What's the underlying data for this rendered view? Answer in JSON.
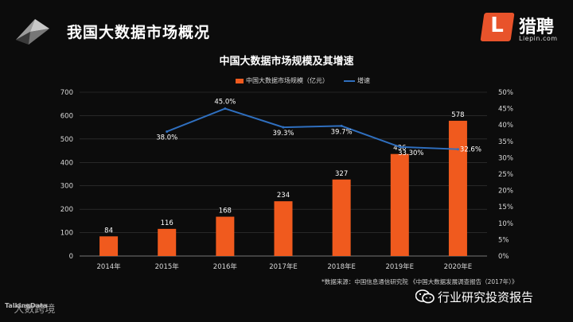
{
  "header": {
    "title": "我国大数据市场概况",
    "logo": {
      "initial": "L",
      "name": "猎聘",
      "domain": "Liepin.com"
    }
  },
  "chart_data": {
    "type": "bar",
    "title": "中国大数据市场规模及其增速",
    "categories": [
      "2014年",
      "2015年",
      "2016年",
      "2017年E",
      "2018年E",
      "2019年E",
      "2020年E"
    ],
    "series": [
      {
        "name": "中国大数据市场规模（亿元）",
        "type": "bar",
        "axis": "left",
        "color": "#f05a1e",
        "values": [
          84,
          116,
          168,
          234,
          327,
          436,
          578
        ],
        "labels": [
          "84",
          "116",
          "168",
          "234",
          "327",
          "436",
          "578"
        ]
      },
      {
        "name": "增速",
        "type": "line",
        "axis": "right",
        "color": "#2f6fbf",
        "values": [
          null,
          38.0,
          45.0,
          39.3,
          39.7,
          33.3,
          32.6
        ],
        "labels": [
          "",
          "38.0%",
          "45.0%",
          "39.3%",
          "39.7%",
          "33.30%",
          "32.6%"
        ]
      }
    ],
    "ylim_left": [
      0,
      700
    ],
    "yticks_left": [
      "0",
      "100",
      "200",
      "300",
      "400",
      "500",
      "600",
      "700"
    ],
    "ylim_right": [
      0,
      50
    ],
    "yticks_right": [
      "0%",
      "5%",
      "10%",
      "15%",
      "20%",
      "25%",
      "30%",
      "35%",
      "40%",
      "45%",
      "50%"
    ],
    "grid": true,
    "legend_position": "top"
  },
  "source_note": "*数据来源：中国信息通信研究院 《中国大数据发展调查报告（2017年）》",
  "wechat_account": "行业研究投资报告",
  "watermark": {
    "brand": "TalkingData",
    "text": "大数跨境"
  }
}
